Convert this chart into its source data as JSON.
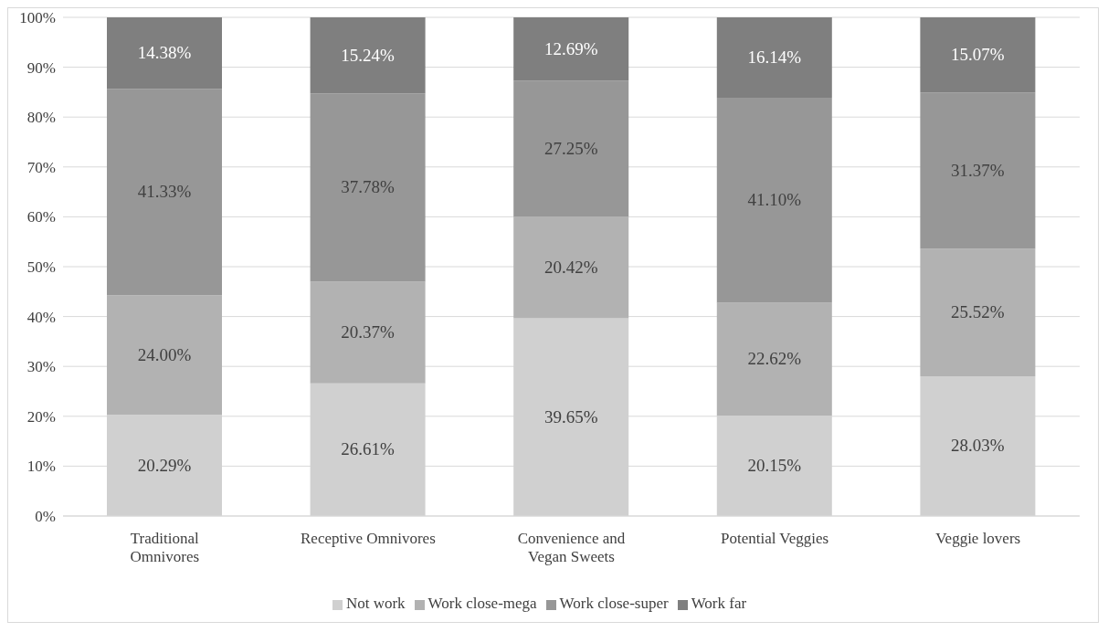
{
  "chart_data": {
    "type": "bar",
    "stacked": true,
    "categories": [
      "Traditional Omnivores",
      "Receptive Omnivores",
      "Convenience and Vegan Sweets",
      "Potential Veggies",
      "Veggie lovers"
    ],
    "series": [
      {
        "name": "Not work",
        "color": "#d0d0d0",
        "values": [
          20.29,
          26.61,
          39.65,
          20.15,
          28.03
        ],
        "value_labels": [
          "20.29%",
          "26.61%",
          "39.65%",
          "20.15%",
          "28.03%"
        ]
      },
      {
        "name": "Work close-mega",
        "color": "#b2b2b2",
        "values": [
          24.0,
          20.37,
          20.42,
          22.62,
          25.52
        ],
        "value_labels": [
          "24.00%",
          "20.37%",
          "20.42%",
          "22.62%",
          "25.52%"
        ]
      },
      {
        "name": "Work close-super",
        "color": "#979797",
        "values": [
          41.33,
          37.78,
          27.25,
          41.1,
          31.37
        ],
        "value_labels": [
          "41.33%",
          "37.78%",
          "27.25%",
          "41.10%",
          "31.37%"
        ]
      },
      {
        "name": "Work far",
        "color": "#7f7f7f",
        "values": [
          14.38,
          15.24,
          12.69,
          16.14,
          15.07
        ],
        "value_labels": [
          "14.38%",
          "15.24%",
          "12.69%",
          "16.14%",
          "15.07%"
        ]
      }
    ],
    "ylim": [
      0,
      100
    ],
    "yticks": [
      {
        "value": 0,
        "label": "0%"
      },
      {
        "value": 10,
        "label": "10%"
      },
      {
        "value": 20,
        "label": "20%"
      },
      {
        "value": 30,
        "label": "30%"
      },
      {
        "value": 40,
        "label": "40%"
      },
      {
        "value": 50,
        "label": "50%"
      },
      {
        "value": 60,
        "label": "60%"
      },
      {
        "value": 70,
        "label": "70%"
      },
      {
        "value": 80,
        "label": "80%"
      },
      {
        "value": 90,
        "label": "90%"
      },
      {
        "value": 100,
        "label": "100%"
      }
    ],
    "grid": "y",
    "legend": "bottom"
  }
}
